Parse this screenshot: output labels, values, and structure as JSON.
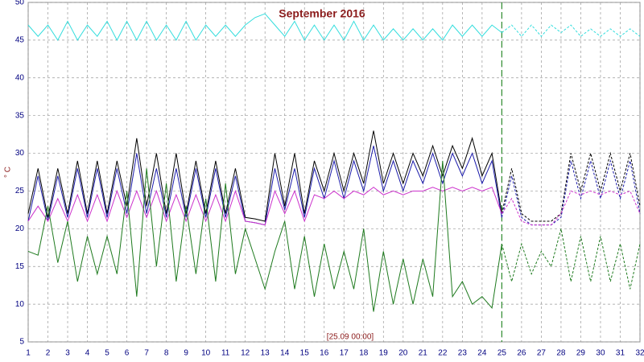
{
  "chart_data": {
    "type": "line",
    "title": "September 2016",
    "y_label": "° C",
    "marker": {
      "x": 25,
      "label": "[25.09 00:00]",
      "color": "#2e8b2e"
    },
    "forecast_dashed": true,
    "x": [
      1,
      1.5,
      2,
      2.5,
      3,
      3.5,
      4,
      4.5,
      5,
      5.5,
      6,
      6.5,
      7,
      7.5,
      8,
      8.5,
      9,
      9.5,
      10,
      10.5,
      11,
      11.5,
      12,
      12.5,
      13,
      13.5,
      14,
      14.5,
      15,
      15.5,
      16,
      16.5,
      17,
      17.5,
      18,
      18.5,
      19,
      19.5,
      20,
      20.5,
      21,
      21.5,
      22,
      22.5,
      23,
      23.5,
      24,
      24.5,
      25,
      25.5,
      26,
      26.5,
      27,
      27.5,
      28,
      28.5,
      29,
      29.5,
      30,
      30.5,
      31,
      31.5,
      32
    ],
    "series": [
      {
        "color": "#33dddd",
        "values": [
          47,
          45.5,
          47,
          45,
          47.5,
          45,
          47,
          45.5,
          47.5,
          45,
          47.5,
          45,
          47.5,
          45,
          47,
          45,
          47.5,
          45,
          47,
          45.5,
          47,
          45.5,
          47,
          48,
          48.5,
          47,
          45.5,
          47.5,
          45,
          47,
          45,
          47,
          45,
          47.5,
          45,
          47,
          45,
          46.5,
          45,
          46.5,
          45,
          46.5,
          45,
          47,
          45.5,
          47,
          45.5,
          47,
          46,
          47,
          45.5,
          47,
          45.5,
          47,
          46,
          47,
          45.5,
          46.5,
          45.5,
          46.5,
          45.5,
          46.5,
          45.5
        ]
      },
      {
        "color": "#000000",
        "values": [
          22,
          28,
          21.5,
          28,
          22,
          29,
          22,
          29,
          22,
          29,
          23,
          32,
          23,
          30,
          22,
          30,
          22,
          29,
          22,
          29,
          22,
          28,
          21.5,
          21.3,
          21,
          30,
          23,
          30,
          22,
          29,
          25,
          30,
          25,
          30,
          26,
          33,
          26,
          30,
          26,
          30,
          27,
          31,
          27,
          31,
          28,
          32,
          27,
          30,
          22,
          28,
          22,
          21,
          21,
          21,
          22,
          30,
          25,
          30,
          25,
          30,
          25,
          30,
          23
        ]
      },
      {
        "color": "#1a1aaa",
        "values": [
          21,
          27,
          21,
          27,
          21.5,
          28,
          21.5,
          28,
          21.5,
          28,
          22,
          30,
          22,
          28,
          21.5,
          28,
          21.5,
          28,
          21.5,
          28,
          21.5,
          27,
          21,
          20.8,
          20.5,
          28,
          22.5,
          28,
          21.5,
          28,
          24,
          29,
          24,
          29,
          25,
          31,
          25,
          29,
          25,
          29,
          26,
          30,
          26,
          30,
          27,
          30,
          26,
          29,
          21.5,
          27,
          21.5,
          20.5,
          20.5,
          20.5,
          21.5,
          29,
          24,
          29,
          24,
          29,
          24,
          29,
          22
        ]
      },
      {
        "color": "#cc33cc",
        "values": [
          21,
          23,
          21,
          24,
          21,
          24.5,
          21,
          24.5,
          21,
          25,
          21.5,
          25,
          21.5,
          25,
          21,
          24.5,
          21,
          24.5,
          21,
          24.5,
          21,
          25,
          21,
          20.8,
          20.5,
          25,
          22,
          25,
          21,
          24.5,
          24,
          25,
          24,
          25,
          24.5,
          25.5,
          24.5,
          25,
          24.5,
          25,
          25,
          25.5,
          25,
          25.5,
          25,
          25.5,
          25,
          25.5,
          22,
          24,
          21,
          20.5,
          20.5,
          20.5,
          22,
          25,
          24.5,
          25,
          24.5,
          25,
          24.5,
          25,
          22
        ]
      },
      {
        "color": "#1e7a1e",
        "values": [
          17,
          16.5,
          23,
          15.5,
          21,
          13,
          19,
          14,
          19,
          14,
          25,
          11,
          28,
          15,
          26,
          13,
          23,
          14,
          24,
          13,
          26,
          14,
          20,
          16,
          12,
          17,
          21,
          12,
          19,
          11,
          18,
          12,
          17,
          12,
          20,
          9,
          17,
          10,
          16,
          10,
          16,
          11,
          29,
          11,
          13,
          10,
          11,
          9.5,
          18,
          13,
          18,
          14,
          17,
          15,
          20,
          13,
          19,
          13,
          19,
          13,
          18,
          12,
          18
        ]
      }
    ],
    "xlim": [
      1,
      32
    ],
    "xticks": [
      1,
      2,
      3,
      4,
      5,
      6,
      7,
      8,
      9,
      10,
      11,
      12,
      13,
      14,
      15,
      16,
      17,
      18,
      19,
      20,
      21,
      22,
      23,
      24,
      25,
      26,
      27,
      28,
      29,
      30,
      31,
      32
    ],
    "ylim": [
      5,
      50
    ],
    "yticks": [
      5,
      10,
      15,
      20,
      25,
      30,
      35,
      40,
      45,
      50
    ],
    "grid": true
  }
}
